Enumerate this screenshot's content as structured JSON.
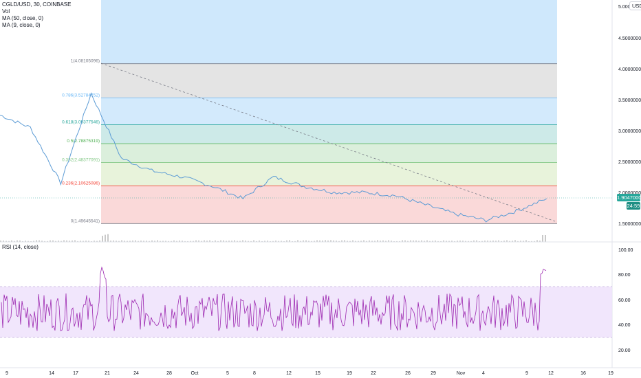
{
  "symbol": {
    "title": "CGLD/USD, 30, COINBASE",
    "indicators": [
      "Vol",
      "MA (50, close, 0)",
      "MA (9, close, 0)"
    ],
    "currency": "USD"
  },
  "price_axis": {
    "ticks": [
      "5.00000000",
      "4.50000000",
      "4.00000000",
      "3.50000000",
      "3.00000000",
      "2.50000000",
      "2.00000000",
      "1.50000000"
    ],
    "last_price_label": "1.90470000",
    "countdown_label": "24:59"
  },
  "rsi": {
    "label": "RSI (14, close)",
    "ticks": [
      "100.00",
      "80.00",
      "60.00",
      "40.00",
      "20.00"
    ]
  },
  "time_axis": {
    "ticks": [
      "9",
      "14",
      "17",
      "21",
      "24",
      "28",
      "Oct",
      "5",
      "8",
      "12",
      "15",
      "19",
      "22",
      "26",
      "29",
      "Nov",
      "4",
      "9",
      "12",
      "16",
      "19"
    ]
  },
  "fib_levels": [
    {
      "label": "1(4.08105096)",
      "value": 4.08105096
    },
    {
      "label": "0.786(3.52784752)",
      "value": 3.52784752
    },
    {
      "label": "0.618(3.09377546)",
      "value": 3.09377546
    },
    {
      "label": "0.5(2.78875319)",
      "value": 2.78875319
    },
    {
      "label": "0.382(2.48377091)",
      "value": 2.48377091
    },
    {
      "label": "0.236(2.10625086)",
      "value": 2.10625086
    },
    {
      "label": "0(1.49645541)",
      "value": 1.49645541
    }
  ],
  "colors": {
    "price_line": "#5b9bd5",
    "rsi_line": "#9c27b0",
    "fib_zone_top": "#bbdefb",
    "fib_zone_786": "#d6d6d6",
    "fib_zone_618": "#bbdefb",
    "fib_zone_5": "#b2dfdb",
    "fib_zone_382": "#c8e6c9",
    "fib_zone_236": "#dcedc8",
    "fib_zone_0": "#f8c5c5",
    "last_price": "#26a69a"
  },
  "chart_data": {
    "type": "line",
    "title": "CGLD/USD, 30, COINBASE",
    "series": [
      {
        "name": "CGLD/USD",
        "x": [
          "9",
          "14",
          "17",
          "21",
          "24",
          "28",
          "Oct",
          "5",
          "8",
          "12",
          "15",
          "19",
          "22",
          "26",
          "29",
          "Nov",
          "4",
          "9",
          "12"
        ],
        "values": [
          3.25,
          3.05,
          2.15,
          3.6,
          2.55,
          2.35,
          2.25,
          2.1,
          1.9,
          2.25,
          2.1,
          2.0,
          2.0,
          1.95,
          1.8,
          1.65,
          1.55,
          1.7,
          1.9
        ]
      }
    ],
    "rsi_series": {
      "name": "RSI (14, close)",
      "band": [
        30,
        70
      ],
      "peak_values": [
        95,
        86
      ]
    },
    "ylim": [
      1.4,
      5.0
    ],
    "grid": false,
    "legend": "top-left"
  }
}
